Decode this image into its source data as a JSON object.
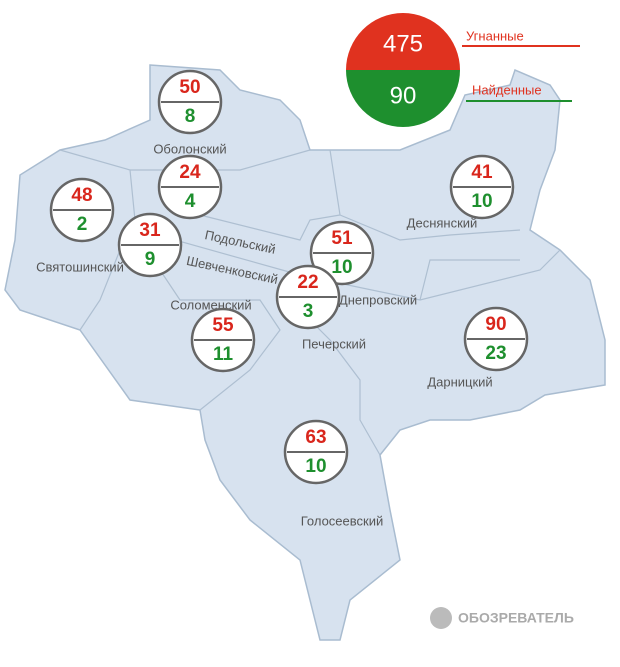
{
  "legend": {
    "stolen_total": "475",
    "found_total": "90",
    "stolen_label": "Угнанные",
    "found_label": "Найденные"
  },
  "districts": [
    {
      "name": "Оболонский",
      "stolen": "50",
      "found": "8"
    },
    {
      "name": "Святошинский",
      "stolen": "48",
      "found": "2"
    },
    {
      "name": "Подольский",
      "stolen": "24",
      "found": "4"
    },
    {
      "name": "Шевченковский",
      "stolen": "31",
      "found": "9"
    },
    {
      "name": "Деснянский",
      "stolen": "41",
      "found": "10"
    },
    {
      "name": "Днепровский",
      "stolen": "51",
      "found": "10"
    },
    {
      "name": "Печерский",
      "stolen": "22",
      "found": "3"
    },
    {
      "name": "Соломенский",
      "stolen": "55",
      "found": "11"
    },
    {
      "name": "Дарницкий",
      "stolen": "90",
      "found": "23"
    },
    {
      "name": "Голосеевский",
      "stolen": "63",
      "found": "10"
    }
  ],
  "watermark": "ОБОЗРЕВАТЕЛЬ"
}
